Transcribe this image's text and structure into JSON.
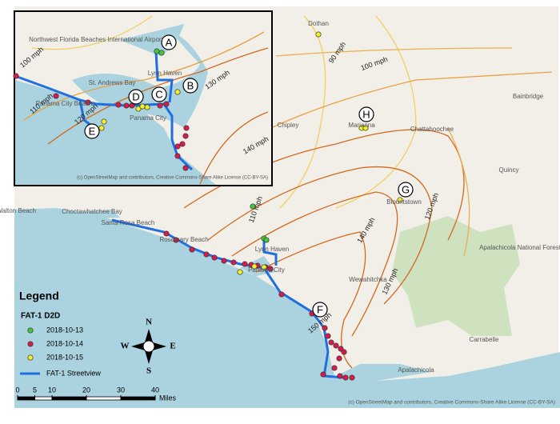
{
  "places": [
    "Dothan",
    "Chipley",
    "Marianna",
    "Chattahoochee",
    "Bainbridge",
    "Quincy",
    "Blountstown",
    "Fort Walton Beach",
    "Choctawhatchee Bay",
    "Santa Rosa Beach",
    "Rosemary Beach",
    "Lynn Haven",
    "Panama City",
    "Wewahitchka",
    "Apalachicola National Forest",
    "Carrabelle",
    "Apalachicola"
  ],
  "wind_labels": [
    "90 mph",
    "100 mph",
    "140 mph",
    "110 mph",
    "140 mph",
    "130 mph",
    "120 mph",
    "150 mph"
  ],
  "points": [
    "F",
    "G",
    "H"
  ],
  "inset": {
    "places": [
      "Northwest Florida Beaches International Airport",
      "Lynn Haven",
      "St. Andrews Bay",
      "Panama City Beach",
      "Panama City"
    ],
    "wind_labels": [
      "100 mph",
      "110 mph",
      "120 mph",
      "130 mph"
    ],
    "points": [
      "A",
      "B",
      "C",
      "D",
      "E"
    ],
    "attribution": "(c) OpenStreetMap and contributors, Creative Commons-Share Alike License (CC-BY-SA)"
  },
  "legend": {
    "title": "Legend",
    "layer": "FAT-1 D2D",
    "items": [
      "2018-10-13",
      "2018-10-14",
      "2018-10-15"
    ],
    "line": "FAT-1 Streetview"
  },
  "compass": [
    "N",
    "E",
    "S",
    "W"
  ],
  "scale_bar": {
    "ticks": [
      0,
      5,
      10,
      20,
      30,
      40
    ],
    "unit": "Miles"
  },
  "attribution": "(c) OpenStreetMap and contributors, Creative Commons-Share Alike License (CC-BY-SA)"
}
